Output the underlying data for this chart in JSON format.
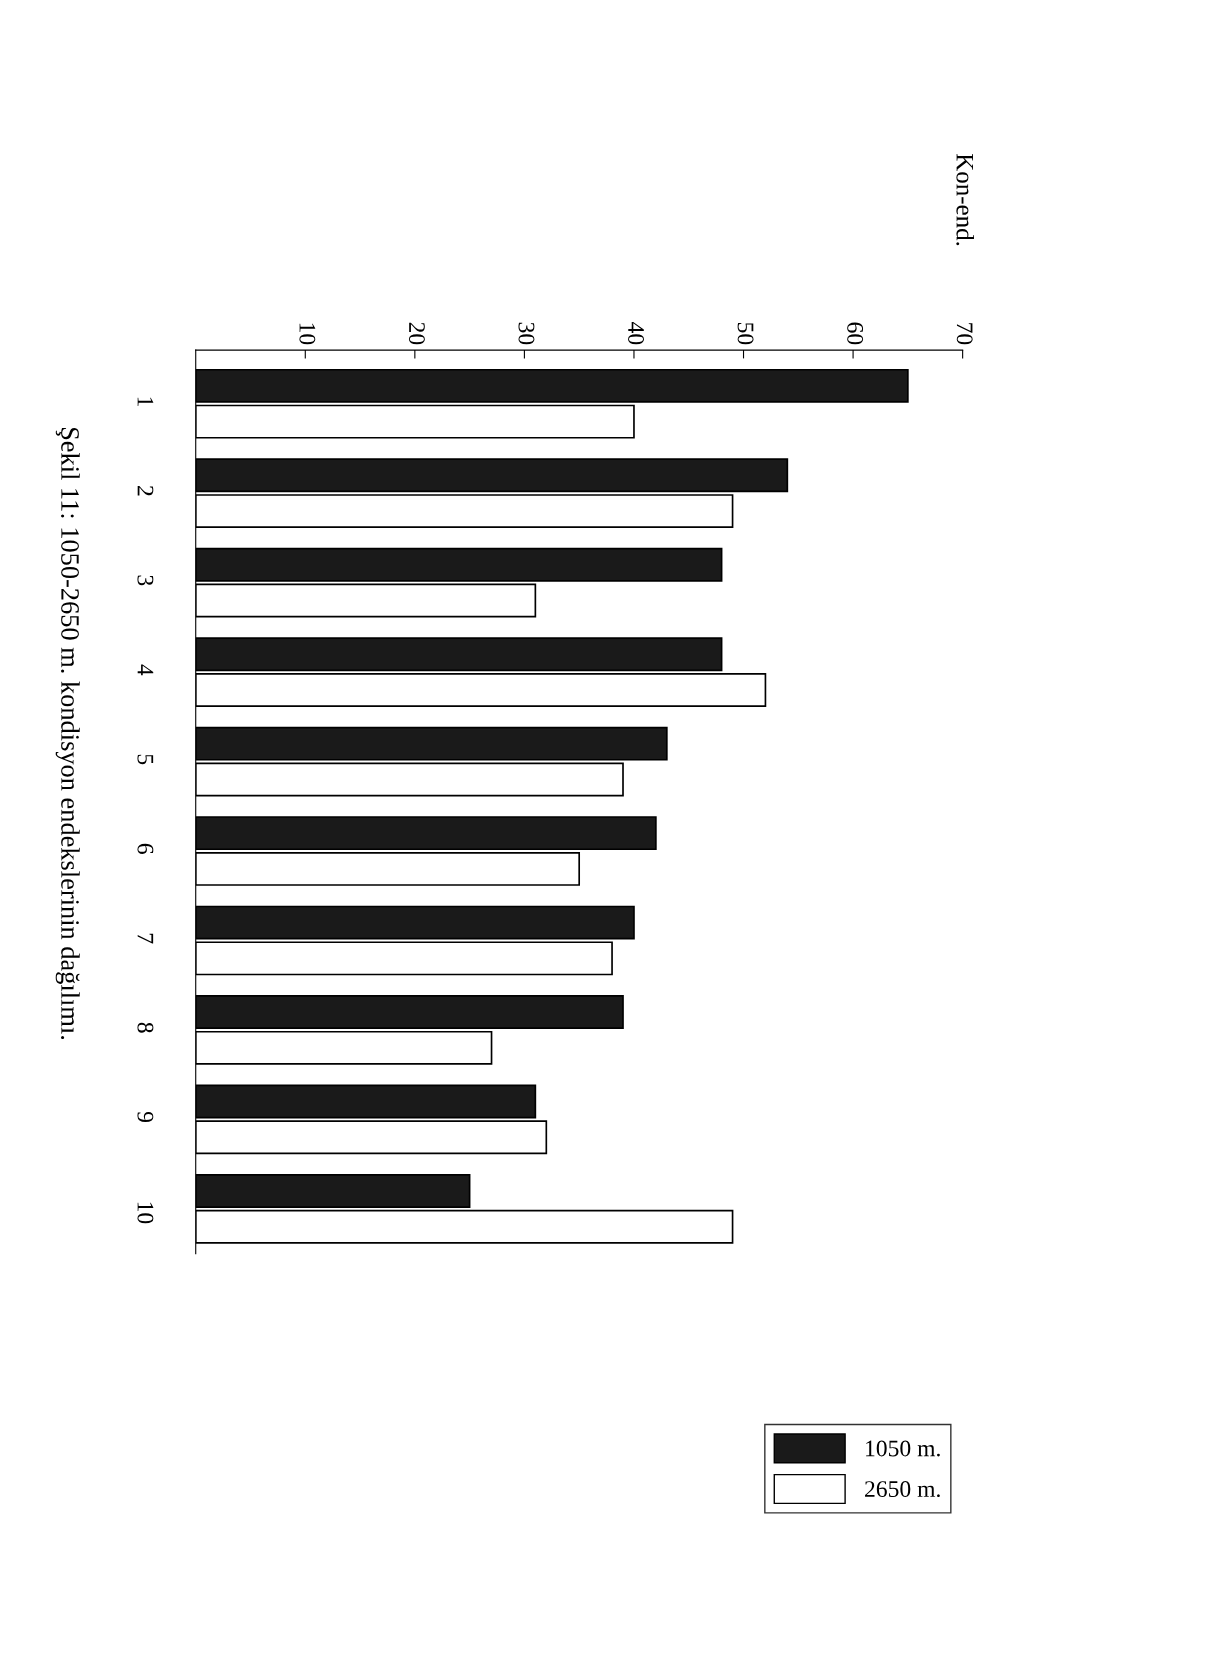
{
  "chart_data": {
    "type": "bar",
    "orientation": "horizontal",
    "categories": [
      "1",
      "2",
      "3",
      "4",
      "5",
      "6",
      "7",
      "8",
      "9",
      "10"
    ],
    "series": [
      {
        "name": "1050 m.",
        "color": "#1a1a1a",
        "values": [
          65,
          54,
          48,
          48,
          43,
          42,
          40,
          39,
          31,
          25
        ]
      },
      {
        "name": "2650 m.",
        "color": "#ffffff",
        "values": [
          40,
          49,
          31,
          52,
          39,
          35,
          38,
          27,
          32,
          49
        ]
      }
    ],
    "xlim": [
      0,
      70
    ],
    "xticks": [
      10,
      20,
      30,
      40,
      50,
      60,
      70
    ],
    "grid": false,
    "legend": "bottom right",
    "annotations": [
      "Kon-end.",
      "Şekil 11: 1050-2650 m. kondisyon endekslerinin dağılımı."
    ]
  }
}
